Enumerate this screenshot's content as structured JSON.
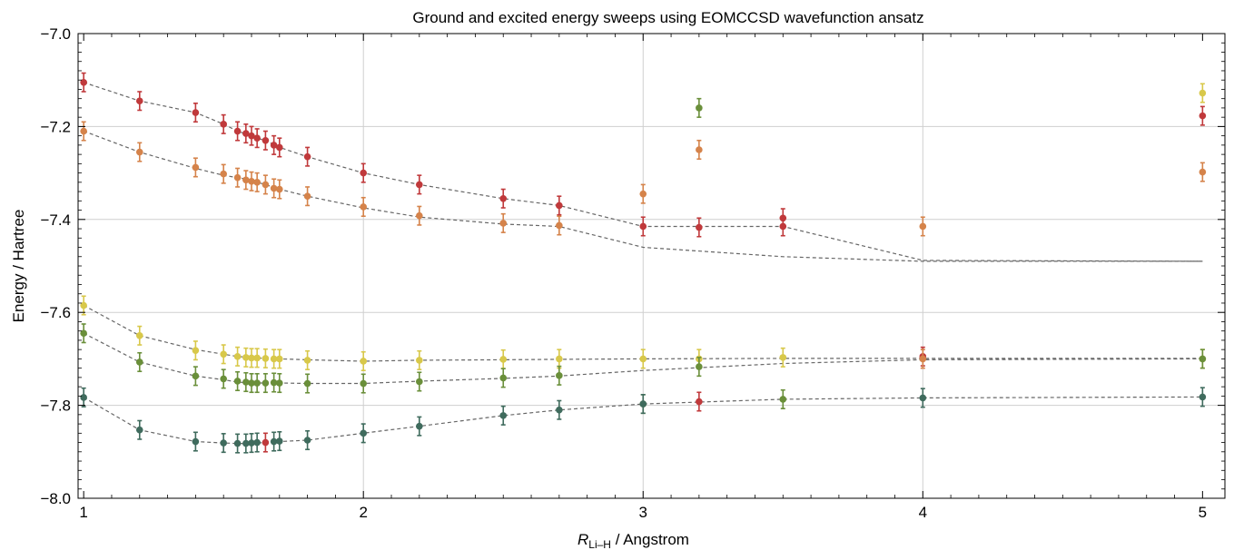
{
  "chart_data": {
    "type": "scatter",
    "title": "Ground and excited energy sweeps using EOMCCSD wavefunction ansatz",
    "xlabel": {
      "symbol": "R",
      "subscript": "Li–H",
      "rest": " / Angstrom"
    },
    "ylabel": "Energy / Hartree",
    "xlim": [
      0.98,
      5.08
    ],
    "ylim": [
      -8.0,
      -7.0
    ],
    "xticks": [
      1,
      2,
      3,
      4,
      5
    ],
    "xtick_labels": [
      "1",
      "2",
      "3",
      "4",
      "5"
    ],
    "yticks": [
      -8.0,
      -7.8,
      -7.6,
      -7.4,
      -7.2,
      -7.0
    ],
    "ytick_labels": [
      "−8.0",
      "−7.8",
      "−7.6",
      "−7.4",
      "−7.2",
      "−7.0"
    ],
    "grid_x": [
      2,
      3,
      4
    ],
    "grid_y": [
      -7.8,
      -7.6,
      -7.4,
      -7.2
    ],
    "colors": {
      "red": "#c0393b",
      "orange": "#d5834a",
      "yellow": "#d8c84a",
      "green": "#6a8f3a",
      "teal": "#3f6b5d",
      "line": "#666666",
      "grid": "#cfcfcf"
    },
    "error_bar": 0.02,
    "reference_curves": [
      {
        "x": [
          1,
          1.2,
          1.4,
          1.5,
          1.55,
          1.6,
          1.62,
          1.65,
          1.7,
          1.8,
          2,
          2.2,
          2.5,
          2.7,
          3,
          3.5,
          4,
          5
        ],
        "y": [
          -7.105,
          -7.145,
          -7.17,
          -7.195,
          -7.21,
          -7.22,
          -7.225,
          -7.23,
          -7.245,
          -7.265,
          -7.3,
          -7.325,
          -7.355,
          -7.37,
          -7.415,
          -7.415,
          -7.488,
          -7.49
        ]
      },
      {
        "x": [
          1,
          1.2,
          1.4,
          1.5,
          1.55,
          1.6,
          1.62,
          1.65,
          1.7,
          1.8,
          2,
          2.2,
          2.5,
          2.7,
          3,
          3.5,
          4,
          5
        ],
        "y": [
          -7.21,
          -7.255,
          -7.29,
          -7.305,
          -7.31,
          -7.315,
          -7.32,
          -7.325,
          -7.335,
          -7.35,
          -7.375,
          -7.395,
          -7.41,
          -7.415,
          -7.46,
          -7.48,
          -7.49,
          -7.49
        ]
      },
      {
        "x": [
          1,
          1.2,
          1.4,
          1.5,
          1.55,
          1.6,
          1.62,
          1.65,
          1.7,
          1.8,
          2,
          2.2,
          2.5,
          2.7,
          3,
          3.5,
          4,
          5
        ],
        "y": [
          -7.585,
          -7.65,
          -7.68,
          -7.69,
          -7.695,
          -7.697,
          -7.698,
          -7.699,
          -7.7,
          -7.702,
          -7.705,
          -7.703,
          -7.702,
          -7.701,
          -7.7,
          -7.699,
          -7.699,
          -7.699
        ]
      },
      {
        "x": [
          1,
          1.2,
          1.4,
          1.5,
          1.55,
          1.6,
          1.62,
          1.65,
          1.7,
          1.8,
          2,
          2.2,
          2.5,
          2.7,
          3,
          3.5,
          4,
          5
        ],
        "y": [
          -7.645,
          -7.707,
          -7.737,
          -7.745,
          -7.75,
          -7.752,
          -7.752,
          -7.752,
          -7.752,
          -7.753,
          -7.753,
          -7.748,
          -7.742,
          -7.737,
          -7.725,
          -7.71,
          -7.702,
          -7.7
        ]
      },
      {
        "x": [
          1,
          1.2,
          1.4,
          1.5,
          1.55,
          1.6,
          1.62,
          1.65,
          1.7,
          1.8,
          2,
          2.2,
          2.5,
          2.7,
          3,
          3.5,
          4,
          5
        ],
        "y": [
          -7.783,
          -7.853,
          -7.878,
          -7.881,
          -7.882,
          -7.882,
          -7.881,
          -7.88,
          -7.878,
          -7.875,
          -7.86,
          -7.845,
          -7.822,
          -7.81,
          -7.797,
          -7.787,
          -7.784,
          -7.782
        ]
      }
    ],
    "series": [
      {
        "color_key": "red",
        "x": [
          1,
          1.2,
          1.4,
          1.5,
          1.55,
          1.58,
          1.6,
          1.62,
          1.65,
          1.68,
          1.7,
          1.8,
          2,
          2.2,
          2.5,
          2.7,
          3,
          3.2,
          3.5,
          3.5,
          4,
          5,
          1.65
        ],
        "y": [
          -7.105,
          -7.145,
          -7.17,
          -7.195,
          -7.21,
          -7.215,
          -7.22,
          -7.225,
          -7.23,
          -7.24,
          -7.245,
          -7.265,
          -7.3,
          -7.325,
          -7.355,
          -7.37,
          -7.415,
          -7.417,
          -7.397,
          -7.415,
          -7.695,
          -7.177,
          -7.88
        ]
      },
      {
        "color_key": "red",
        "x": [
          3.2
        ],
        "y": [
          -7.792
        ]
      },
      {
        "color_key": "orange",
        "x": [
          1,
          1.2,
          1.4,
          1.5,
          1.55,
          1.58,
          1.6,
          1.62,
          1.65,
          1.68,
          1.7,
          1.8,
          2,
          2.2,
          2.5,
          2.7,
          3,
          3.2,
          4,
          5,
          4
        ],
        "y": [
          -7.21,
          -7.255,
          -7.288,
          -7.302,
          -7.31,
          -7.315,
          -7.318,
          -7.32,
          -7.325,
          -7.333,
          -7.335,
          -7.35,
          -7.373,
          -7.392,
          -7.408,
          -7.413,
          -7.345,
          -7.25,
          -7.415,
          -7.298,
          -7.7
        ]
      },
      {
        "color_key": "yellow",
        "x": [
          1,
          1.2,
          1.4,
          1.5,
          1.55,
          1.58,
          1.6,
          1.62,
          1.65,
          1.68,
          1.7,
          1.8,
          2,
          2.2,
          2.5,
          2.7,
          3,
          3.2,
          3.5,
          5,
          5
        ],
        "y": [
          -7.585,
          -7.65,
          -7.682,
          -7.69,
          -7.695,
          -7.697,
          -7.698,
          -7.698,
          -7.699,
          -7.7,
          -7.7,
          -7.703,
          -7.705,
          -7.703,
          -7.701,
          -7.7,
          -7.7,
          -7.7,
          -7.697,
          -7.128,
          -7.7
        ]
      },
      {
        "color_key": "green",
        "x": [
          1,
          1.2,
          1.4,
          1.5,
          1.55,
          1.58,
          1.6,
          1.62,
          1.65,
          1.68,
          1.7,
          1.8,
          2,
          2.2,
          2.5,
          2.7,
          3,
          3.2,
          3.5,
          5,
          3.2
        ],
        "y": [
          -7.645,
          -7.707,
          -7.737,
          -7.743,
          -7.748,
          -7.75,
          -7.752,
          -7.752,
          -7.752,
          -7.751,
          -7.752,
          -7.753,
          -7.753,
          -7.749,
          -7.741,
          -7.736,
          -7.797,
          -7.717,
          -7.787,
          -7.7,
          -7.16
        ]
      },
      {
        "color_key": "teal",
        "x": [
          1,
          1.2,
          1.4,
          1.5,
          1.55,
          1.58,
          1.6,
          1.62,
          1.68,
          1.7,
          1.8,
          2,
          2.2,
          2.5,
          2.7,
          3,
          4,
          5
        ],
        "y": [
          -7.783,
          -7.853,
          -7.878,
          -7.881,
          -7.882,
          -7.882,
          -7.881,
          -7.88,
          -7.878,
          -7.877,
          -7.875,
          -7.86,
          -7.845,
          -7.822,
          -7.81,
          -7.797,
          -7.784,
          -7.782
        ]
      }
    ]
  }
}
